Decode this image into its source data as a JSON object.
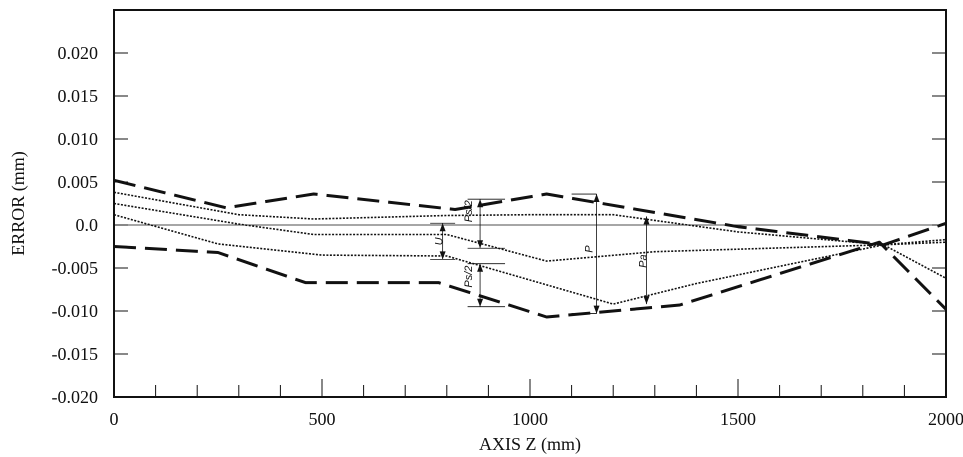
{
  "chart_data": {
    "type": "line",
    "xlabel": "AXIS Z (mm)",
    "ylabel": "ERROR (mm)",
    "xlim": [
      0,
      2000
    ],
    "ylim": [
      -0.02,
      0.025
    ],
    "xticks": [
      0,
      500,
      1000,
      1500,
      2000
    ],
    "xtick_labels": [
      "0",
      "500",
      "1000",
      "1500",
      "2000"
    ],
    "yticks": [
      0.02,
      0.015,
      0.01,
      0.005,
      0.0,
      -0.005,
      -0.01,
      -0.015,
      -0.02
    ],
    "ytick_labels": [
      "0.020",
      "0.015",
      "0.010",
      "0.005",
      "0.0",
      "-0.005",
      "-0.010",
      "-0.015",
      "-0.020"
    ],
    "grid": false,
    "series": [
      {
        "style": "dashed",
        "color": "#111111",
        "x": [
          0,
          270,
          480,
          820,
          1040,
          1500,
          1850,
          2000
        ],
        "y": [
          0.0052,
          0.002,
          0.0036,
          0.0018,
          0.0036,
          -0.0002,
          -0.0023,
          0.0002
        ]
      },
      {
        "style": "dashed",
        "color": "#111111",
        "x": [
          0,
          250,
          460,
          780,
          1040,
          1360,
          1840,
          2000
        ],
        "y": [
          -0.0025,
          -0.0032,
          -0.0067,
          -0.0067,
          -0.0107,
          -0.0093,
          -0.002,
          -0.0098
        ]
      },
      {
        "style": "dotted",
        "color": "#111111",
        "x": [
          0,
          300,
          480,
          800,
          1000,
          1200,
          1500,
          1850,
          2000
        ],
        "y": [
          0.0038,
          0.0012,
          0.0007,
          0.0011,
          0.0012,
          0.0012,
          -0.0008,
          -0.0023,
          -0.0017
        ]
      },
      {
        "style": "dotted",
        "color": "#111111",
        "x": [
          0,
          300,
          480,
          800,
          1040,
          1300,
          1850,
          2000
        ],
        "y": [
          0.0025,
          0.0001,
          -0.0011,
          -0.0011,
          -0.0042,
          -0.0031,
          -0.0023,
          -0.0062
        ]
      },
      {
        "style": "dotted",
        "color": "#111111",
        "x": [
          0,
          250,
          500,
          800,
          1200,
          1400,
          1850,
          2000
        ],
        "y": [
          0.0012,
          -0.0022,
          -0.0035,
          -0.0036,
          -0.0092,
          -0.0068,
          -0.0023,
          -0.002
        ]
      }
    ],
    "annotations": [
      {
        "text": "U",
        "x": 790,
        "y": -0.0019
      },
      {
        "text": "Ps/2",
        "x": 860,
        "y": 0.0016
      },
      {
        "text": "Ps/2",
        "x": 860,
        "y": -0.006
      },
      {
        "text": "P",
        "x": 1150,
        "y": -0.0028
      },
      {
        "text": "Pa",
        "x": 1280,
        "y": -0.0042
      }
    ]
  }
}
